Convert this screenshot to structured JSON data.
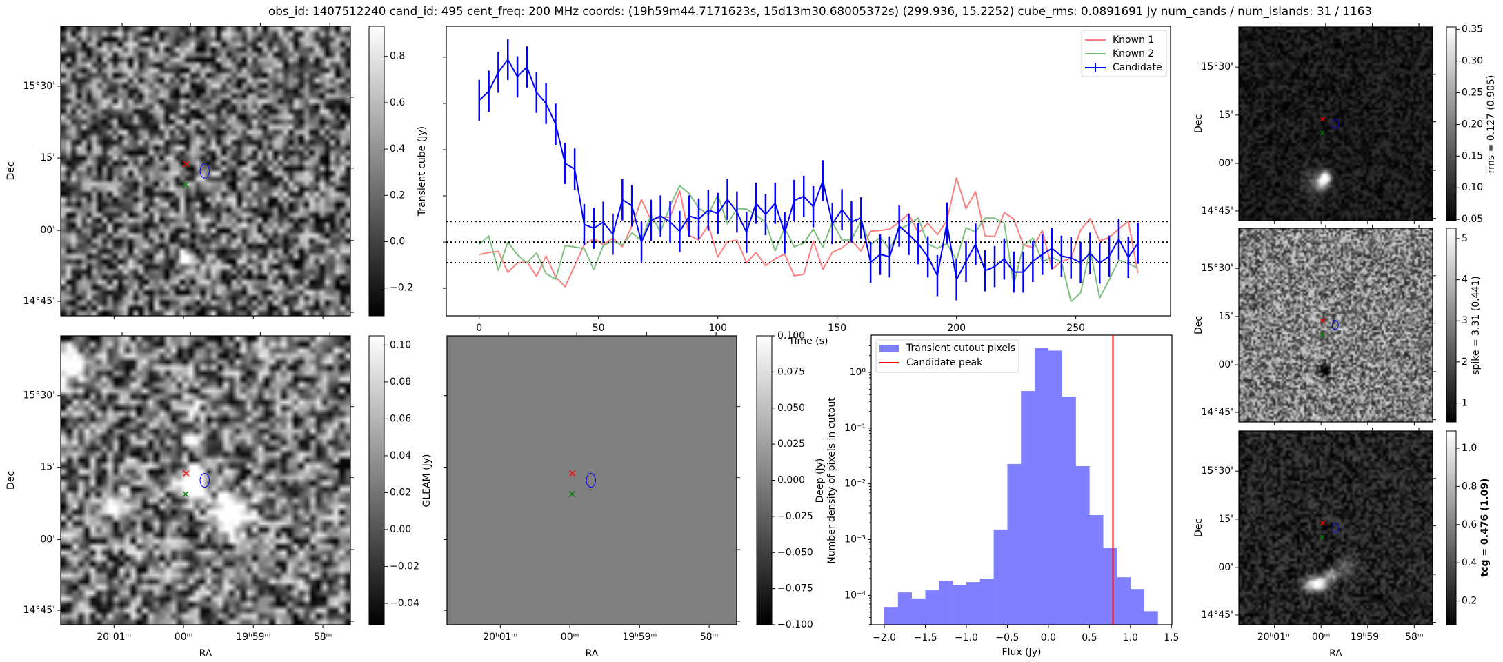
{
  "title": "obs_id: 1407512240 cand_id: 495 cent_freq: 200 MHz coords: (19h59m44.7171623s, 15d13m30.68005372s) (299.936, 15.2252) cube_rms: 0.0891691 Jy num_cands / num_islands: 31 / 1163",
  "image_axes": {
    "ra_label": "RA",
    "dec_label": "Dec",
    "ra_ticks": [
      "20ʰ01ᵐ",
      "00ᵐ",
      "19ʰ59ᵐ",
      "58ᵐ"
    ],
    "dec_ticks": [
      "15°30'",
      "15'",
      "00'",
      "14°45'"
    ]
  },
  "colors": {
    "known1": "#ff7f7f",
    "known2": "#7fbf7f",
    "candidate": "#0000ff",
    "hist": "#7f7fff",
    "peak": "#ff0000"
  },
  "colorbars": {
    "transient": {
      "label": "Transient cube (Jy)",
      "ticks": [
        {
          "v": 0.8,
          "t": "0.8"
        },
        {
          "v": 0.6,
          "t": "0.6"
        },
        {
          "v": 0.4,
          "t": "0.4"
        },
        {
          "v": 0.2,
          "t": "0.2"
        },
        {
          "v": 0.0,
          "t": "0.0"
        },
        {
          "v": -0.2,
          "t": "−0.2"
        }
      ]
    },
    "deep": {
      "label": "Deep (Jy)",
      "ticks": [
        {
          "v": 0.1,
          "t": "0.10"
        },
        {
          "v": 0.08,
          "t": "0.08"
        },
        {
          "v": 0.06,
          "t": "0.06"
        },
        {
          "v": 0.04,
          "t": "0.04"
        },
        {
          "v": 0.02,
          "t": "0.02"
        },
        {
          "v": 0.0,
          "t": "0.00"
        },
        {
          "v": -0.02,
          "t": "−0.02"
        },
        {
          "v": -0.04,
          "t": "−0.04"
        }
      ]
    },
    "gleam": {
      "label": "GLEAM (Jy)",
      "ticks": [
        {
          "v": 0.1,
          "t": "0.100"
        },
        {
          "v": 0.075,
          "t": "0.075"
        },
        {
          "v": 0.05,
          "t": "0.050"
        },
        {
          "v": 0.025,
          "t": "0.025"
        },
        {
          "v": 0.0,
          "t": "0.000"
        },
        {
          "v": -0.025,
          "t": "−0.025"
        },
        {
          "v": -0.05,
          "t": "−0.050"
        },
        {
          "v": -0.075,
          "t": "−0.075"
        },
        {
          "v": -0.1,
          "t": "−0.100"
        }
      ]
    },
    "rms": {
      "label": "rms = 0.127 (0.905)",
      "ticks": [
        {
          "v": 0.35,
          "t": "0.35"
        },
        {
          "v": 0.3,
          "t": "0.30"
        },
        {
          "v": 0.25,
          "t": "0.25"
        },
        {
          "v": 0.2,
          "t": "0.20"
        },
        {
          "v": 0.15,
          "t": "0.15"
        },
        {
          "v": 0.1,
          "t": "0.10"
        },
        {
          "v": 0.05,
          "t": "0.05"
        }
      ]
    },
    "spike": {
      "label": "spike = 3.31 (0.441)",
      "ticks": [
        {
          "v": 5,
          "t": "5"
        },
        {
          "v": 4,
          "t": "4"
        },
        {
          "v": 3,
          "t": "3"
        },
        {
          "v": 2,
          "t": "2"
        },
        {
          "v": 1,
          "t": "1"
        }
      ]
    },
    "tcg": {
      "label": "tcg = 0.476 (1.09)",
      "ticks": [
        {
          "v": 1.0,
          "t": "1.0"
        },
        {
          "v": 0.8,
          "t": "0.8"
        },
        {
          "v": 0.6,
          "t": "0.6"
        },
        {
          "v": 0.4,
          "t": "0.4"
        },
        {
          "v": 0.2,
          "t": "0.2"
        }
      ]
    }
  },
  "chart_data": [
    {
      "type": "line",
      "ylabel": "Transient cube (Jy)",
      "xlabel": "Time (s)",
      "x_ticks": [
        0,
        50,
        100,
        150,
        200,
        250
      ],
      "y_ticks_unlabeled": [
        0.8,
        0.6,
        0.4,
        0.2,
        0.0,
        -0.2
      ],
      "xlim": [
        -13.8,
        289.7
      ],
      "ylim": [
        -0.319,
        0.934
      ],
      "legend_placement": "top-right",
      "reference_lines": {
        "style": "dotted",
        "values": [
          0.0892,
          0.0,
          -0.0892
        ]
      },
      "x": {
        "start": 0,
        "step": 4,
        "count": 70
      },
      "series": [
        {
          "name": "Known 1",
          "values": [
            -0.054,
            -0.045,
            -0.04,
            -0.131,
            -0.09,
            -0.085,
            -0.148,
            -0.06,
            -0.151,
            -0.193,
            -0.102,
            -0.011,
            0.015,
            -0.011,
            0.017,
            -0.02,
            0.071,
            0.185,
            0.094,
            0.108,
            0.108,
            0.222,
            0.029,
            0.009,
            0.073,
            -0.064,
            0.002,
            0.008,
            -0.089,
            -0.045,
            -0.102,
            -0.072,
            -0.052,
            -0.146,
            -0.139,
            0.005,
            -0.118,
            -0.044,
            -0.025,
            0.008,
            -0.039,
            0.047,
            0.05,
            0.056,
            0.087,
            0.122,
            0.04,
            0.082,
            0.033,
            0.092,
            0.278,
            0.145,
            0.218,
            0.026,
            0.025,
            0.127,
            0.1,
            -0.012,
            -0.024,
            0.05,
            -0.118,
            -0.084,
            -0.07,
            0.052,
            0.102,
            0.005,
            0.02,
            0.057,
            0.09,
            -0.134
          ]
        },
        {
          "name": "Known 2",
          "values": [
            -0.01,
            0.027,
            -0.122,
            0.0,
            -0.055,
            -0.09,
            -0.047,
            -0.136,
            -0.161,
            -0.015,
            -0.021,
            -0.028,
            -0.119,
            -0.015,
            0.004,
            -0.013,
            0.04,
            0.007,
            0.118,
            0.044,
            0.157,
            0.244,
            0.21,
            0.148,
            0.119,
            0.205,
            0.078,
            0.145,
            0.143,
            0.116,
            0.086,
            -0.038,
            0.061,
            -0.021,
            -0.005,
            0.056,
            -0.022,
            0.087,
            0.01,
            0.01,
            0.09,
            -0.012,
            0.021,
            -0.032,
            0.057,
            0.075,
            0.105,
            -0.009,
            -0.027,
            -0.007,
            -0.078,
            0.062,
            0.044,
            0.104,
            0.104,
            0.082,
            -0.185,
            -0.017,
            0.018,
            -0.084,
            -0.066,
            -0.086,
            -0.257,
            -0.22,
            -0.032,
            -0.242,
            -0.163,
            -0.078,
            -0.093,
            -0.113
          ]
        },
        {
          "name": "Candidate",
          "yerr": 0.089,
          "values": [
            0.613,
            0.653,
            0.735,
            0.79,
            0.715,
            0.758,
            0.648,
            0.6,
            0.51,
            0.34,
            0.316,
            0.076,
            0.06,
            0.086,
            0.034,
            0.183,
            0.157,
            0.0,
            0.094,
            0.113,
            0.087,
            0.046,
            0.113,
            0.1,
            0.138,
            0.124,
            0.185,
            0.13,
            0.042,
            0.168,
            0.119,
            0.168,
            0.04,
            0.18,
            0.198,
            0.153,
            0.265,
            0.08,
            0.14,
            0.087,
            0.105,
            -0.088,
            -0.053,
            -0.064,
            0.069,
            0.033,
            -0.007,
            -0.064,
            -0.145,
            0.082,
            -0.163,
            -0.084,
            -0.009,
            -0.124,
            -0.106,
            -0.073,
            -0.13,
            -0.13,
            -0.084,
            -0.053,
            -0.027,
            -0.061,
            -0.068,
            -0.089,
            -0.048,
            -0.091,
            -0.061,
            0.013,
            -0.066,
            -0.005
          ]
        }
      ],
      "x_tick_labels": [
        "0",
        "50",
        "100",
        "150",
        "200",
        "250"
      ]
    },
    {
      "type": "bar",
      "subtype": "histogram",
      "xlabel": "Flux (Jy)",
      "ylabel": "Number density of pixels in cutout",
      "yscale": "log",
      "xlim": [
        -2.16,
        1.506
      ],
      "ylim": [
        2.97e-05,
        4.66
      ],
      "legend_placement": "top-left",
      "bin_edges": [
        -2.0,
        -1.8333,
        -1.6667,
        -1.5,
        -1.3333,
        -1.1667,
        -1.0,
        -0.8333,
        -0.6667,
        -0.5,
        -0.3333,
        -0.1667,
        0.0,
        0.1667,
        0.3333,
        0.5,
        0.6667,
        0.8333,
        1.0,
        1.1667,
        1.3333
      ],
      "values": [
        6.2e-05,
        0.000113,
        8.8e-05,
        0.000123,
        0.000184,
        0.000155,
        0.000173,
        0.0002,
        0.00152,
        0.0227,
        0.463,
        2.71,
        2.46,
        0.369,
        0.0208,
        0.00275,
        0.00072,
        0.000211,
        0.00013,
        5.2e-05
      ],
      "series_name": "Transient cutout pixels",
      "vline": {
        "name": "Candidate peak",
        "x": 0.787
      },
      "x_ticks": [
        {
          "v": -2.0,
          "t": "−2.0"
        },
        {
          "v": -1.5,
          "t": "−1.5"
        },
        {
          "v": -1.0,
          "t": "−1.0"
        },
        {
          "v": -0.5,
          "t": "−0.5"
        },
        {
          "v": 0.0,
          "t": "0.0"
        },
        {
          "v": 0.5,
          "t": "0.5"
        },
        {
          "v": 1.0,
          "t": "1.0"
        },
        {
          "v": 1.5,
          "t": "1.5"
        }
      ],
      "y_ticks": [
        {
          "v": 0,
          "t": "10⁰"
        },
        {
          "v": -1,
          "t": "10⁻¹"
        },
        {
          "v": -2,
          "t": "10⁻²"
        },
        {
          "v": -3,
          "t": "10⁻³"
        },
        {
          "v": -4,
          "t": "10⁻⁴"
        }
      ]
    }
  ]
}
